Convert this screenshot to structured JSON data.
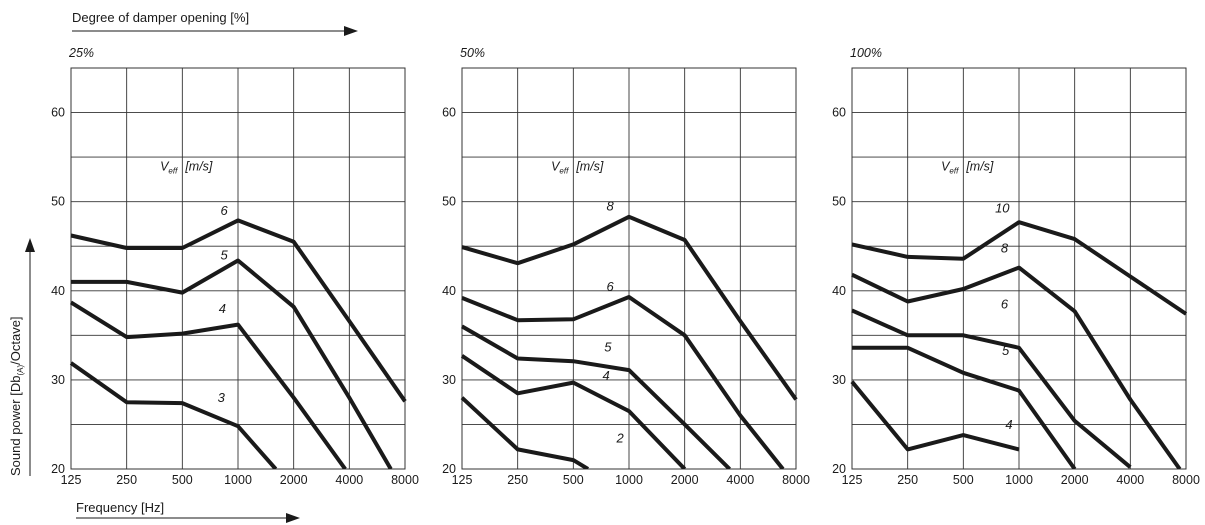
{
  "figure": {
    "top_title": "Degree of damper opening [%]",
    "xlabel": "Frequency [Hz]",
    "ylabel_main": "Sound power  [Db",
    "ylabel_sub": "(A)",
    "ylabel_end": "/Octave]",
    "veff_main": "V",
    "veff_sub": "eff",
    "veff_unit": "[m/s]"
  },
  "chart_data": [
    {
      "type": "line",
      "title": "25%",
      "x": [
        125,
        250,
        500,
        1000,
        2000,
        4000,
        8000
      ],
      "x_tick_labels": [
        "125",
        "250",
        "500",
        "1000",
        "2000",
        "4000",
        "8000"
      ],
      "xscale": "log",
      "ylim": [
        20,
        65
      ],
      "y_tick_labels": [
        "20",
        "30",
        "40",
        "50",
        "60"
      ],
      "y_ticks": [
        20,
        30,
        40,
        50,
        60
      ],
      "grid": true,
      "series": [
        {
          "name": "6",
          "points": [
            [
              125,
              46.2
            ],
            [
              250,
              44.8
            ],
            [
              500,
              44.8
            ],
            [
              1000,
              47.9
            ],
            [
              2000,
              45.5
            ],
            [
              4000,
              36.6
            ],
            [
              8000,
              27.6
            ]
          ]
        },
        {
          "name": "5",
          "points": [
            [
              125,
              41.0
            ],
            [
              250,
              41.0
            ],
            [
              500,
              39.8
            ],
            [
              1000,
              43.4
            ],
            [
              2000,
              38.2
            ],
            [
              4000,
              28.0
            ],
            [
              6700,
              20.0
            ]
          ]
        },
        {
          "name": "4",
          "points": [
            [
              125,
              38.7
            ],
            [
              250,
              34.8
            ],
            [
              500,
              35.2
            ],
            [
              1000,
              36.2
            ],
            [
              2000,
              28.0
            ],
            [
              3800,
              20.0
            ]
          ]
        },
        {
          "name": "3",
          "points": [
            [
              125,
              31.9
            ],
            [
              250,
              27.5
            ],
            [
              500,
              27.4
            ],
            [
              1000,
              24.8
            ],
            [
              1600,
              20.0
            ]
          ]
        }
      ],
      "labels": [
        {
          "text": "6",
          "x": 1000,
          "y": 48.5,
          "anchor_x": 0.75
        },
        {
          "text": "5",
          "x": 1000,
          "y": 43.5,
          "anchor_x": 0.75
        },
        {
          "text": "4",
          "x": 1000,
          "y": 37.5,
          "anchor_x": 0.72
        },
        {
          "text": "3",
          "x": 1000,
          "y": 27.5,
          "anchor_x": 0.7
        }
      ]
    },
    {
      "type": "line",
      "title": "50%",
      "x": [
        125,
        250,
        500,
        1000,
        2000,
        4000,
        8000
      ],
      "x_tick_labels": [
        "125",
        "250",
        "500",
        "1000",
        "2000",
        "4000",
        "8000"
      ],
      "xscale": "log",
      "ylim": [
        20,
        65
      ],
      "y_tick_labels": [
        "20",
        "30",
        "40",
        "50",
        "60"
      ],
      "y_ticks": [
        20,
        30,
        40,
        50,
        60
      ],
      "grid": true,
      "series": [
        {
          "name": "8",
          "points": [
            [
              125,
              44.9
            ],
            [
              250,
              43.1
            ],
            [
              500,
              45.2
            ],
            [
              1000,
              48.3
            ],
            [
              2000,
              45.7
            ],
            [
              4000,
              36.6
            ],
            [
              8000,
              27.8
            ]
          ]
        },
        {
          "name": "6",
          "points": [
            [
              125,
              39.2
            ],
            [
              250,
              36.7
            ],
            [
              500,
              36.8
            ],
            [
              1000,
              39.3
            ],
            [
              2000,
              35.0
            ],
            [
              4000,
              26.0
            ],
            [
              6800,
              20.0
            ]
          ]
        },
        {
          "name": "5",
          "points": [
            [
              125,
              36.0
            ],
            [
              250,
              32.4
            ],
            [
              500,
              32.1
            ],
            [
              1000,
              31.1
            ],
            [
              2000,
              25.0
            ],
            [
              3500,
              20.0
            ]
          ]
        },
        {
          "name": "4",
          "points": [
            [
              125,
              32.7
            ],
            [
              250,
              28.5
            ],
            [
              500,
              29.7
            ],
            [
              1000,
              26.5
            ],
            [
              2000,
              20.0
            ]
          ]
        },
        {
          "name": "2",
          "points": [
            [
              125,
              28.0
            ],
            [
              250,
              22.2
            ],
            [
              500,
              21.0
            ],
            [
              600,
              20.0
            ]
          ]
        }
      ],
      "labels": [
        {
          "text": "8",
          "x": 1000,
          "y": 49.0,
          "anchor_x": 0.66
        },
        {
          "text": "6",
          "x": 1000,
          "y": 40.0,
          "anchor_x": 0.66
        },
        {
          "text": "5",
          "x": 1000,
          "y": 33.2,
          "anchor_x": 0.62
        },
        {
          "text": "4",
          "x": 1000,
          "y": 30.0,
          "anchor_x": 0.59
        },
        {
          "text": "2",
          "x": 1000,
          "y": 23.0,
          "anchor_x": 0.84
        }
      ]
    },
    {
      "type": "line",
      "title": "100%",
      "x": [
        125,
        250,
        500,
        1000,
        2000,
        4000,
        8000
      ],
      "x_tick_labels": [
        "125",
        "250",
        "500",
        "1000",
        "2000",
        "4000",
        "8000"
      ],
      "xscale": "log",
      "ylim": [
        20,
        65
      ],
      "y_tick_labels": [
        "20",
        "30",
        "40",
        "50",
        "60"
      ],
      "y_ticks": [
        20,
        30,
        40,
        50,
        60
      ],
      "grid": true,
      "series": [
        {
          "name": "10",
          "points": [
            [
              125,
              45.2
            ],
            [
              250,
              43.8
            ],
            [
              500,
              43.6
            ],
            [
              1000,
              47.7
            ],
            [
              2000,
              45.8
            ],
            [
              4000,
              41.6
            ],
            [
              8000,
              37.4
            ]
          ]
        },
        {
          "name": "8",
          "points": [
            [
              125,
              41.8
            ],
            [
              250,
              38.8
            ],
            [
              500,
              40.2
            ],
            [
              1000,
              42.6
            ],
            [
              2000,
              37.7
            ],
            [
              4000,
              27.8
            ],
            [
              7400,
              20.0
            ]
          ]
        },
        {
          "name": "6",
          "points": [
            [
              125,
              37.8
            ],
            [
              250,
              35.0
            ],
            [
              500,
              35.0
            ],
            [
              1000,
              33.6
            ],
            [
              2000,
              25.4
            ],
            [
              4000,
              20.2
            ]
          ]
        },
        {
          "name": "5",
          "points": [
            [
              125,
              33.6
            ],
            [
              250,
              33.6
            ],
            [
              500,
              30.8
            ],
            [
              1000,
              28.8
            ],
            [
              2000,
              20.0
            ]
          ]
        },
        {
          "name": "4",
          "points": [
            [
              125,
              29.8
            ],
            [
              250,
              22.2
            ],
            [
              500,
              23.8
            ],
            [
              1000,
              22.2
            ]
          ]
        }
      ],
      "labels": [
        {
          "text": "10",
          "x": 1000,
          "y": 48.8,
          "anchor_x": 0.7
        },
        {
          "text": "8",
          "x": 1000,
          "y": 44.3,
          "anchor_x": 0.74
        },
        {
          "text": "6",
          "x": 1000,
          "y": 38.0,
          "anchor_x": 0.74
        },
        {
          "text": "5",
          "x": 1000,
          "y": 32.8,
          "anchor_x": 0.76
        },
        {
          "text": "4",
          "x": 1000,
          "y": 24.5,
          "anchor_x": 0.82
        }
      ]
    }
  ]
}
